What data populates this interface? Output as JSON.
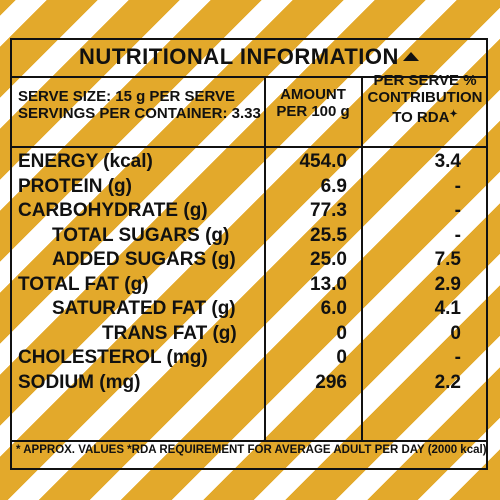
{
  "title": "NUTRITIONAL INFORMATION",
  "header": {
    "serve_size": "SERVE SIZE: 15 g PER SERVE",
    "servings": "SERVINGS PER CONTAINER: 3.33",
    "amount_line1": "AMOUNT",
    "amount_line2": "PER 100 g",
    "rda_line1": "PER SERVE %",
    "rda_line2": "CONTRIBUTION",
    "rda_line3": "TO RDA"
  },
  "rows": [
    {
      "name": "ENERGY (kcal)",
      "amount": "454.0",
      "rda": "3.4"
    },
    {
      "name": "PROTEIN (g)",
      "amount": "6.9",
      "rda": "-"
    },
    {
      "name": "CARBOHYDRATE (g)",
      "amount": "77.3",
      "rda": "-"
    },
    {
      "name": "TOTAL SUGARS (g)",
      "amount": "25.5",
      "rda": "-"
    },
    {
      "name": "ADDED SUGARS (g)",
      "amount": "25.0",
      "rda": "7.5"
    },
    {
      "name": "TOTAL FAT (g)",
      "amount": "13.0",
      "rda": "2.9"
    },
    {
      "name": "SATURATED FAT (g)",
      "amount": "6.0",
      "rda": "4.1"
    },
    {
      "name": "TRANS FAT (g)",
      "amount": "0",
      "rda": "0"
    },
    {
      "name": "CHOLESTEROL (mg)",
      "amount": "0",
      "rda": "-"
    },
    {
      "name": "SODIUM (mg)",
      "amount": "296",
      "rda": "2.2"
    }
  ],
  "footer": "* APPROX. VALUES  *RDA REQUIREMENT FOR AVERAGE ADULT PER DAY (2000 kcal)",
  "colors": {
    "stripe": "#E3A92B",
    "background": "#FFFFFF",
    "ink": "#111111"
  }
}
